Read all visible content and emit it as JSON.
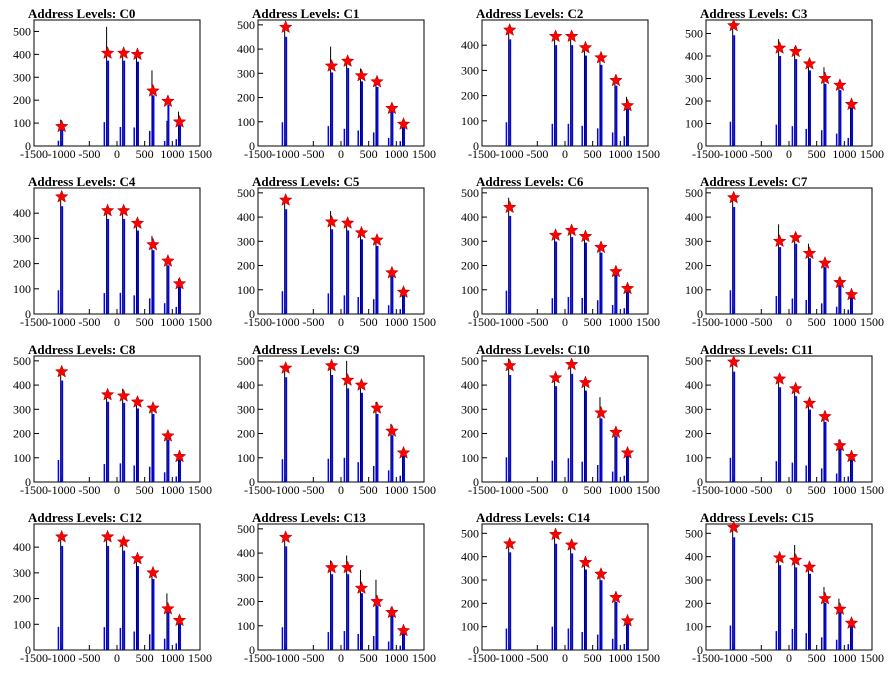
{
  "chart_data": {
    "type": "bar",
    "xlim": [
      -1500,
      1500
    ],
    "xticks": [
      -1500,
      -1000,
      -500,
      0,
      500,
      1000,
      1500
    ],
    "tick_labels_x": [
      "-1500",
      "-1000",
      "-500",
      "0",
      "500",
      "1000",
      "1500"
    ],
    "colors": {
      "histogram": "#0000ff",
      "tall_bar": "#000000",
      "marker": "#ff0000",
      "marker_outline": "#990000"
    },
    "marker_shape": "star",
    "grid": false,
    "panels": [
      {
        "title": "Address Levels: C0",
        "ymax": 550,
        "yticks": [
          0,
          100,
          200,
          300,
          400,
          500
        ],
        "peaks": [
          {
            "x": -1000,
            "y": 115,
            "marker": 85
          },
          {
            "x": -170,
            "y": 520,
            "marker": 405
          },
          {
            "x": 120,
            "y": 415,
            "marker": 405
          },
          {
            "x": 370,
            "y": 405,
            "marker": 400
          },
          {
            "x": 650,
            "y": 330,
            "marker": 240
          },
          {
            "x": 920,
            "y": 110,
            "marker": 195
          },
          {
            "x": 1130,
            "y": 150,
            "marker": 105
          }
        ]
      },
      {
        "title": "Address Levels: C1",
        "ymax": 520,
        "yticks": [
          0,
          100,
          200,
          300,
          400,
          500
        ],
        "peaks": [
          {
            "x": -1000,
            "y": 490,
            "marker": 490
          },
          {
            "x": -170,
            "y": 410,
            "marker": 330
          },
          {
            "x": 120,
            "y": 355,
            "marker": 350
          },
          {
            "x": 370,
            "y": 320,
            "marker": 290
          },
          {
            "x": 650,
            "y": 280,
            "marker": 265
          },
          {
            "x": 920,
            "y": 165,
            "marker": 155
          },
          {
            "x": 1130,
            "y": 100,
            "marker": 90
          }
        ]
      },
      {
        "title": "Address Levels: C2",
        "ymax": 500,
        "yticks": [
          0,
          100,
          200,
          300,
          400
        ],
        "peaks": [
          {
            "x": -1000,
            "y": 470,
            "marker": 460
          },
          {
            "x": -170,
            "y": 440,
            "marker": 435
          },
          {
            "x": 120,
            "y": 440,
            "marker": 435
          },
          {
            "x": 370,
            "y": 400,
            "marker": 390
          },
          {
            "x": 650,
            "y": 350,
            "marker": 350
          },
          {
            "x": 920,
            "y": 270,
            "marker": 260
          },
          {
            "x": 1130,
            "y": 195,
            "marker": 160
          }
        ]
      },
      {
        "title": "Address Levels: C3",
        "ymax": 560,
        "yticks": [
          0,
          100,
          200,
          300,
          400,
          500
        ],
        "peaks": [
          {
            "x": -1000,
            "y": 540,
            "marker": 535
          },
          {
            "x": -170,
            "y": 475,
            "marker": 435
          },
          {
            "x": 120,
            "y": 440,
            "marker": 420
          },
          {
            "x": 370,
            "y": 380,
            "marker": 365
          },
          {
            "x": 650,
            "y": 350,
            "marker": 300
          },
          {
            "x": 920,
            "y": 275,
            "marker": 270
          },
          {
            "x": 1130,
            "y": 180,
            "marker": 185
          }
        ]
      },
      {
        "title": "Address Levels: C4",
        "ymax": 500,
        "yticks": [
          0,
          100,
          200,
          300,
          400
        ],
        "peaks": [
          {
            "x": -1000,
            "y": 470,
            "marker": 465
          },
          {
            "x": -170,
            "y": 415,
            "marker": 410
          },
          {
            "x": 120,
            "y": 420,
            "marker": 410
          },
          {
            "x": 370,
            "y": 370,
            "marker": 360
          },
          {
            "x": 650,
            "y": 310,
            "marker": 275
          },
          {
            "x": 920,
            "y": 215,
            "marker": 210
          },
          {
            "x": 1130,
            "y": 140,
            "marker": 120
          }
        ]
      },
      {
        "title": "Address Levels: C5",
        "ymax": 520,
        "yticks": [
          0,
          100,
          200,
          300,
          400,
          500
        ],
        "peaks": [
          {
            "x": -1000,
            "y": 470,
            "marker": 470
          },
          {
            "x": -170,
            "y": 425,
            "marker": 380
          },
          {
            "x": 120,
            "y": 385,
            "marker": 375
          },
          {
            "x": 370,
            "y": 350,
            "marker": 335
          },
          {
            "x": 650,
            "y": 305,
            "marker": 305
          },
          {
            "x": 920,
            "y": 180,
            "marker": 170
          },
          {
            "x": 1130,
            "y": 100,
            "marker": 90
          }
        ]
      },
      {
        "title": "Address Levels: C6",
        "ymax": 520,
        "yticks": [
          0,
          100,
          200,
          300,
          400,
          500
        ],
        "peaks": [
          {
            "x": -1000,
            "y": 480,
            "marker": 440
          },
          {
            "x": -170,
            "y": 325,
            "marker": 325
          },
          {
            "x": 120,
            "y": 350,
            "marker": 345
          },
          {
            "x": 370,
            "y": 330,
            "marker": 320
          },
          {
            "x": 650,
            "y": 285,
            "marker": 275
          },
          {
            "x": 920,
            "y": 185,
            "marker": 175
          },
          {
            "x": 1130,
            "y": 120,
            "marker": 105
          }
        ]
      },
      {
        "title": "Address Levels: C7",
        "ymax": 520,
        "yticks": [
          0,
          100,
          200,
          300,
          400,
          500
        ],
        "peaks": [
          {
            "x": -1000,
            "y": 490,
            "marker": 480
          },
          {
            "x": -170,
            "y": 370,
            "marker": 300
          },
          {
            "x": 120,
            "y": 320,
            "marker": 315
          },
          {
            "x": 370,
            "y": 290,
            "marker": 250
          },
          {
            "x": 650,
            "y": 220,
            "marker": 210
          },
          {
            "x": 920,
            "y": 150,
            "marker": 130
          },
          {
            "x": 1130,
            "y": 90,
            "marker": 80
          }
        ]
      },
      {
        "title": "Address Levels: C8",
        "ymax": 520,
        "yticks": [
          0,
          100,
          200,
          300,
          400,
          500
        ],
        "peaks": [
          {
            "x": -1000,
            "y": 455,
            "marker": 455
          },
          {
            "x": -170,
            "y": 370,
            "marker": 360
          },
          {
            "x": 120,
            "y": 385,
            "marker": 355
          },
          {
            "x": 370,
            "y": 340,
            "marker": 330
          },
          {
            "x": 650,
            "y": 315,
            "marker": 305
          },
          {
            "x": 920,
            "y": 200,
            "marker": 190
          },
          {
            "x": 1130,
            "y": 115,
            "marker": 105
          }
        ]
      },
      {
        "title": "Address Levels: C9",
        "ymax": 520,
        "yticks": [
          0,
          100,
          200,
          300,
          400,
          500
        ],
        "peaks": [
          {
            "x": -1000,
            "y": 470,
            "marker": 470
          },
          {
            "x": -170,
            "y": 480,
            "marker": 480
          },
          {
            "x": 120,
            "y": 500,
            "marker": 420
          },
          {
            "x": 370,
            "y": 410,
            "marker": 400
          },
          {
            "x": 650,
            "y": 330,
            "marker": 305
          },
          {
            "x": 920,
            "y": 240,
            "marker": 210
          },
          {
            "x": 1130,
            "y": 130,
            "marker": 120
          }
        ]
      },
      {
        "title": "Address Levels: C10",
        "ymax": 520,
        "yticks": [
          0,
          100,
          200,
          300,
          400,
          500
        ],
        "peaks": [
          {
            "x": -1000,
            "y": 510,
            "marker": 480
          },
          {
            "x": -170,
            "y": 440,
            "marker": 430
          },
          {
            "x": 120,
            "y": 490,
            "marker": 485
          },
          {
            "x": 370,
            "y": 420,
            "marker": 410
          },
          {
            "x": 650,
            "y": 350,
            "marker": 285
          },
          {
            "x": 920,
            "y": 215,
            "marker": 205
          },
          {
            "x": 1130,
            "y": 130,
            "marker": 120
          }
        ]
      },
      {
        "title": "Address Levels: C11",
        "ymax": 520,
        "yticks": [
          0,
          100,
          200,
          300,
          400,
          500
        ],
        "peaks": [
          {
            "x": -1000,
            "y": 500,
            "marker": 495
          },
          {
            "x": -170,
            "y": 430,
            "marker": 425
          },
          {
            "x": 120,
            "y": 400,
            "marker": 385
          },
          {
            "x": 370,
            "y": 340,
            "marker": 325
          },
          {
            "x": 650,
            "y": 280,
            "marker": 270
          },
          {
            "x": 920,
            "y": 175,
            "marker": 150
          },
          {
            "x": 1130,
            "y": 115,
            "marker": 105
          }
        ]
      },
      {
        "title": "Address Levels: C12",
        "ymax": 490,
        "yticks": [
          0,
          100,
          200,
          300,
          400
        ],
        "peaks": [
          {
            "x": -1000,
            "y": 450,
            "marker": 440
          },
          {
            "x": -170,
            "y": 445,
            "marker": 440
          },
          {
            "x": 120,
            "y": 430,
            "marker": 420
          },
          {
            "x": 370,
            "y": 360,
            "marker": 355
          },
          {
            "x": 650,
            "y": 305,
            "marker": 300
          },
          {
            "x": 920,
            "y": 220,
            "marker": 160
          },
          {
            "x": 1130,
            "y": 130,
            "marker": 115
          }
        ]
      },
      {
        "title": "Address Levels: C13",
        "ymax": 520,
        "yticks": [
          0,
          100,
          200,
          300,
          400,
          500
        ],
        "peaks": [
          {
            "x": -1000,
            "y": 470,
            "marker": 465
          },
          {
            "x": -170,
            "y": 370,
            "marker": 340
          },
          {
            "x": 120,
            "y": 390,
            "marker": 340
          },
          {
            "x": 370,
            "y": 330,
            "marker": 255
          },
          {
            "x": 650,
            "y": 290,
            "marker": 200
          },
          {
            "x": 920,
            "y": 175,
            "marker": 155
          },
          {
            "x": 1130,
            "y": 90,
            "marker": 80
          }
        ]
      },
      {
        "title": "Address Levels: C14",
        "ymax": 540,
        "yticks": [
          0,
          100,
          200,
          300,
          400,
          500
        ],
        "peaks": [
          {
            "x": -1000,
            "y": 460,
            "marker": 455
          },
          {
            "x": -170,
            "y": 500,
            "marker": 495
          },
          {
            "x": 120,
            "y": 460,
            "marker": 450
          },
          {
            "x": 370,
            "y": 385,
            "marker": 375
          },
          {
            "x": 650,
            "y": 330,
            "marker": 325
          },
          {
            "x": 920,
            "y": 240,
            "marker": 225
          },
          {
            "x": 1130,
            "y": 130,
            "marker": 125
          }
        ]
      },
      {
        "title": "Address Levels: C15",
        "ymax": 540,
        "yticks": [
          0,
          100,
          200,
          300,
          400,
          500
        ],
        "peaks": [
          {
            "x": -1000,
            "y": 525,
            "marker": 525
          },
          {
            "x": -170,
            "y": 405,
            "marker": 395
          },
          {
            "x": 120,
            "y": 450,
            "marker": 385
          },
          {
            "x": 370,
            "y": 360,
            "marker": 355
          },
          {
            "x": 650,
            "y": 270,
            "marker": 220
          },
          {
            "x": 920,
            "y": 220,
            "marker": 175
          },
          {
            "x": 1130,
            "y": 125,
            "marker": 115
          }
        ]
      }
    ]
  }
}
